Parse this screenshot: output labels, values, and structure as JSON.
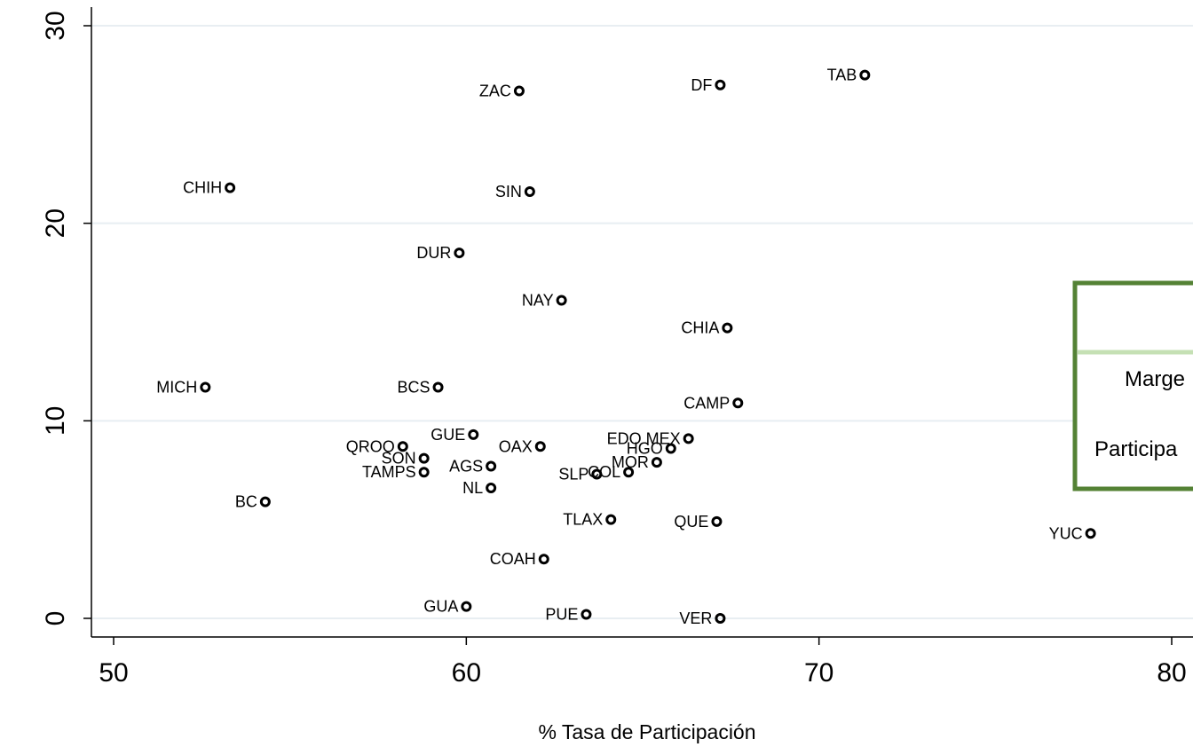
{
  "chart_data": {
    "type": "scatter",
    "xlabel": "% Tasa de Participación",
    "ylabel": "",
    "xlim": [
      50,
      80
    ],
    "ylim": [
      0,
      30
    ],
    "xticks": [
      50,
      60,
      70,
      80
    ],
    "yticks": [
      0,
      10,
      20,
      30
    ],
    "grid": true,
    "points": [
      {
        "label": "ZAC",
        "x": 61.5,
        "y": 26.7
      },
      {
        "label": "DF",
        "x": 67.2,
        "y": 27.0
      },
      {
        "label": "TAB",
        "x": 71.3,
        "y": 27.5
      },
      {
        "label": "CHIH",
        "x": 53.3,
        "y": 21.8
      },
      {
        "label": "SIN",
        "x": 61.8,
        "y": 21.6
      },
      {
        "label": "DUR",
        "x": 59.8,
        "y": 18.5
      },
      {
        "label": "NAY",
        "x": 62.7,
        "y": 16.1
      },
      {
        "label": "CHIA",
        "x": 67.4,
        "y": 14.7
      },
      {
        "label": "MICH",
        "x": 52.6,
        "y": 11.7
      },
      {
        "label": "BCS",
        "x": 59.2,
        "y": 11.7
      },
      {
        "label": "CAMP",
        "x": 67.7,
        "y": 10.9
      },
      {
        "label": "GUE",
        "x": 60.2,
        "y": 9.3
      },
      {
        "label": "EDO MEX",
        "x": 66.3,
        "y": 9.1
      },
      {
        "label": "QROO",
        "x": 58.2,
        "y": 8.7
      },
      {
        "label": "OAX",
        "x": 62.1,
        "y": 8.7
      },
      {
        "label": "HGO",
        "x": 65.8,
        "y": 8.6
      },
      {
        "label": "SON",
        "x": 58.8,
        "y": 8.1
      },
      {
        "label": "MOR",
        "x": 65.4,
        "y": 7.9
      },
      {
        "label": "AGS",
        "x": 60.7,
        "y": 7.7
      },
      {
        "label": "TAMPS",
        "x": 58.8,
        "y": 7.4
      },
      {
        "label": "COL",
        "x": 64.6,
        "y": 7.4
      },
      {
        "label": "SLP",
        "x": 63.7,
        "y": 7.3
      },
      {
        "label": "NL",
        "x": 60.7,
        "y": 6.6
      },
      {
        "label": "BC",
        "x": 54.3,
        "y": 5.9
      },
      {
        "label": "TLAX",
        "x": 64.1,
        "y": 5.0
      },
      {
        "label": "QUE",
        "x": 67.1,
        "y": 4.9
      },
      {
        "label": "YUC",
        "x": 77.7,
        "y": 4.3
      },
      {
        "label": "COAH",
        "x": 62.2,
        "y": 3.0
      },
      {
        "label": "GUA",
        "x": 60.0,
        "y": 0.6
      },
      {
        "label": "PUE",
        "x": 63.4,
        "y": 0.2
      },
      {
        "label": "VER",
        "x": 67.2,
        "y": 0.0
      }
    ]
  },
  "legend": {
    "row1": "Marge",
    "row2": "Participa"
  },
  "colors": {
    "legend_border": "#548235",
    "legend_divider": "#c5e0b4",
    "grid": "#e8eef2",
    "marker": "#000000"
  }
}
